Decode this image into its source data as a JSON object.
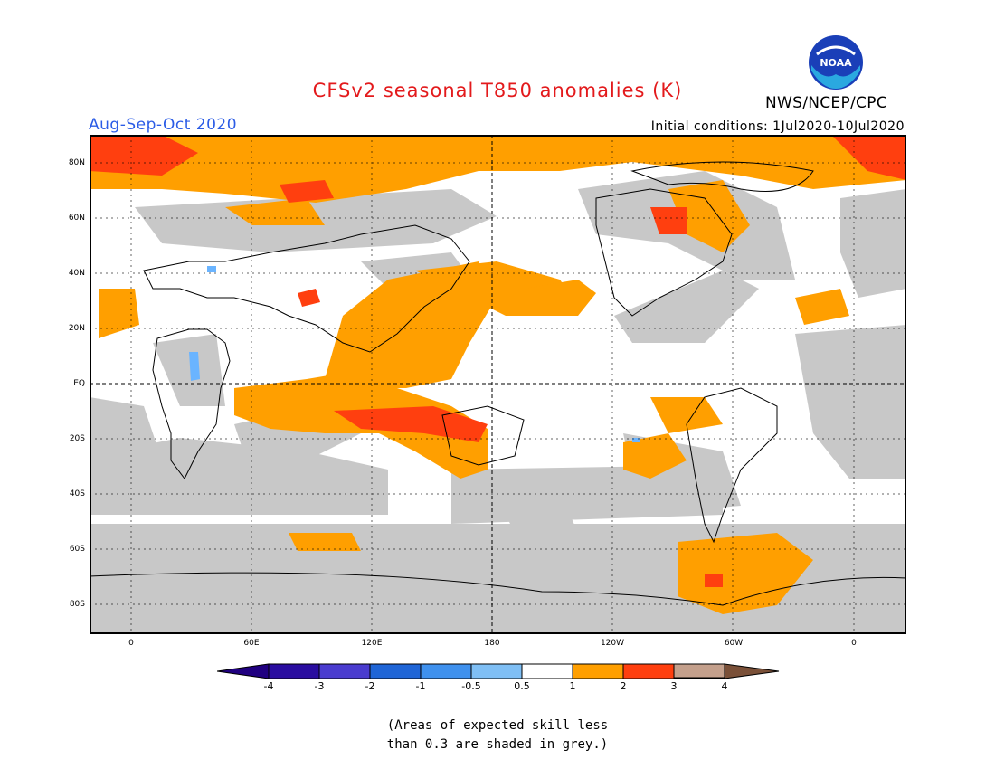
{
  "header": {
    "title": "CFSv2 seasonal T850 anomalies (K)",
    "period": "Aug-Sep-Oct 2020",
    "initial_conditions": "Initial conditions: 1Jul2020-10Jul2020",
    "agency": "NWS/NCEP/CPC",
    "logo_text": "NOAA"
  },
  "colors": {
    "title": "#e31a1c",
    "period": "#2b5ce6",
    "grey_skill": "#c8c8c8",
    "orange": "#ff9f00",
    "red_orange": "#ff3f0f",
    "dark_red": "#a5000a",
    "light_blue": "#6ab4ff",
    "ocean_white": "#ffffff"
  },
  "map": {
    "lat_labels": [
      "80N",
      "60N",
      "40N",
      "20N",
      "EQ",
      "20S",
      "40S",
      "60S",
      "80S"
    ],
    "lon_labels": [
      "0",
      "60E",
      "120E",
      "180",
      "120W",
      "60W",
      "0"
    ]
  },
  "colorbar": {
    "labels": [
      "-4",
      "-3",
      "-2",
      "-1",
      "-0.5",
      "0.5",
      "1",
      "2",
      "3",
      "4"
    ],
    "colors": [
      "#2a0da0",
      "#4a3ccf",
      "#1f65d6",
      "#3f91ee",
      "#7fbff5",
      "#ffffff",
      "#ff9f00",
      "#ff3f0f",
      "#a5000a",
      "#c4a08c"
    ],
    "under_color": "#200080",
    "over_color": "#7a5038"
  },
  "note": {
    "line1": "(Areas of expected skill less",
    "line2": "than 0.3 are shaded in grey.)"
  }
}
